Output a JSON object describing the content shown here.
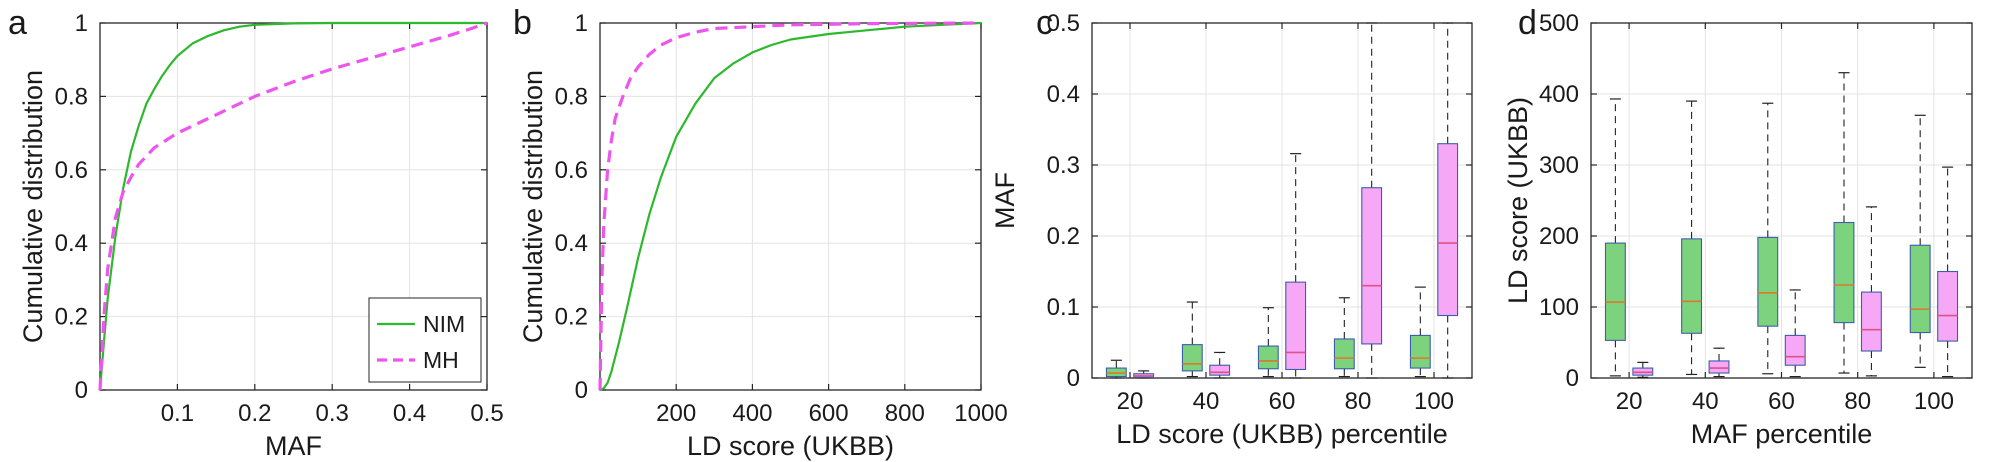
{
  "figure": {
    "panel_letters": [
      "a",
      "b",
      "c",
      "d"
    ]
  },
  "colors": {
    "nim": "#2db82d",
    "mh": "#ee55ee",
    "nim_fill": "#7dd27d",
    "mh_fill": "#f6a8f6",
    "median_nim": "#d97a2a",
    "median_mh": "#e0508a"
  },
  "chart_data": [
    {
      "panel": "a",
      "type": "line",
      "xlabel": "MAF",
      "ylabel": "Cumulative distribution",
      "xlim": [
        0,
        0.5
      ],
      "ylim": [
        0,
        1
      ],
      "xticks": [
        "0.1",
        "0.2",
        "0.3",
        "0.4",
        "0.5"
      ],
      "xtick_values": [
        0.1,
        0.2,
        0.3,
        0.4,
        0.5
      ],
      "yticks": [
        "0",
        "0.2",
        "0.4",
        "0.6",
        "0.8",
        "1"
      ],
      "ytick_values": [
        0,
        0.2,
        0.4,
        0.6,
        0.8,
        1
      ],
      "grid": true,
      "legend_position": "bottom-right",
      "series": [
        {
          "name": "NIM",
          "style": "solid",
          "color": "#2db82d",
          "x": [
            0,
            0.005,
            0.01,
            0.02,
            0.03,
            0.04,
            0.05,
            0.06,
            0.07,
            0.08,
            0.09,
            0.1,
            0.12,
            0.14,
            0.16,
            0.18,
            0.2,
            0.25,
            0.3,
            0.5
          ],
          "y": [
            0,
            0.13,
            0.25,
            0.42,
            0.55,
            0.65,
            0.72,
            0.78,
            0.82,
            0.855,
            0.885,
            0.91,
            0.945,
            0.965,
            0.98,
            0.99,
            0.995,
            0.999,
            1,
            1
          ]
        },
        {
          "name": "MH",
          "style": "dashed",
          "color": "#ee55ee",
          "x": [
            0,
            0.005,
            0.01,
            0.02,
            0.03,
            0.04,
            0.05,
            0.07,
            0.1,
            0.15,
            0.2,
            0.25,
            0.3,
            0.35,
            0.4,
            0.45,
            0.48,
            0.5
          ],
          "y": [
            0,
            0.2,
            0.33,
            0.47,
            0.54,
            0.58,
            0.615,
            0.66,
            0.7,
            0.75,
            0.8,
            0.84,
            0.875,
            0.905,
            0.935,
            0.965,
            0.985,
            1
          ]
        }
      ]
    },
    {
      "panel": "b",
      "type": "line",
      "xlabel": "LD score (UKBB)",
      "ylabel": "Cumulative distribution",
      "xlim": [
        0,
        1000
      ],
      "ylim": [
        0,
        1
      ],
      "xticks": [
        "200",
        "400",
        "600",
        "800",
        "1000"
      ],
      "xtick_values": [
        200,
        400,
        600,
        800,
        1000
      ],
      "yticks": [
        "0",
        "0.2",
        "0.4",
        "0.6",
        "0.8",
        "1"
      ],
      "ytick_values": [
        0,
        0.2,
        0.4,
        0.6,
        0.8,
        1
      ],
      "grid": true,
      "series": [
        {
          "name": "NIM",
          "style": "solid",
          "color": "#2db82d",
          "x": [
            0,
            10,
            20,
            30,
            50,
            70,
            100,
            130,
            160,
            200,
            250,
            300,
            350,
            400,
            450,
            500,
            600,
            700,
            800,
            900,
            1000
          ],
          "y": [
            0,
            0.005,
            0.02,
            0.05,
            0.13,
            0.22,
            0.36,
            0.48,
            0.58,
            0.69,
            0.78,
            0.85,
            0.89,
            0.92,
            0.94,
            0.955,
            0.97,
            0.98,
            0.99,
            0.995,
            1
          ]
        },
        {
          "name": "MH",
          "style": "dashed",
          "color": "#ee55ee",
          "x": [
            0,
            5,
            10,
            20,
            30,
            40,
            60,
            80,
            100,
            130,
            160,
            200,
            250,
            300,
            400,
            500,
            700,
            1000
          ],
          "y": [
            0,
            0.3,
            0.45,
            0.6,
            0.68,
            0.74,
            0.8,
            0.85,
            0.88,
            0.915,
            0.94,
            0.96,
            0.975,
            0.985,
            0.99,
            0.995,
            0.998,
            1
          ]
        }
      ]
    },
    {
      "panel": "c",
      "type": "box",
      "xlabel": "LD score (UKBB) percentile",
      "ylabel": "MAF",
      "categories": [
        "20",
        "40",
        "60",
        "80",
        "100"
      ],
      "ylim": [
        0,
        0.5
      ],
      "yticks": [
        "0",
        "0.1",
        "0.2",
        "0.3",
        "0.4",
        "0.5"
      ],
      "ytick_values": [
        0,
        0.1,
        0.2,
        0.3,
        0.4,
        0.5
      ],
      "grid": true,
      "series": [
        {
          "name": "NIM",
          "color": "#2db82d",
          "boxes": [
            {
              "min": 0.0,
              "q1": 0.002,
              "median": 0.007,
              "q3": 0.014,
              "max": 0.025
            },
            {
              "min": 0.002,
              "q1": 0.01,
              "median": 0.02,
              "q3": 0.047,
              "max": 0.107
            },
            {
              "min": 0.002,
              "q1": 0.013,
              "median": 0.024,
              "q3": 0.045,
              "max": 0.099
            },
            {
              "min": 0.002,
              "q1": 0.013,
              "median": 0.028,
              "q3": 0.055,
              "max": 0.113
            },
            {
              "min": 0.002,
              "q1": 0.014,
              "median": 0.028,
              "q3": 0.06,
              "max": 0.128
            }
          ]
        },
        {
          "name": "MH",
          "color": "#ee55ee",
          "boxes": [
            {
              "min": 0.0,
              "q1": 0.001,
              "median": 0.003,
              "q3": 0.006,
              "max": 0.01
            },
            {
              "min": 0.0,
              "q1": 0.004,
              "median": 0.008,
              "q3": 0.018,
              "max": 0.036
            },
            {
              "min": 0.0,
              "q1": 0.012,
              "median": 0.036,
              "q3": 0.135,
              "max": 0.316
            },
            {
              "min": 0.0,
              "q1": 0.048,
              "median": 0.13,
              "q3": 0.268,
              "max": 0.5
            },
            {
              "min": 0.0,
              "q1": 0.088,
              "median": 0.19,
              "q3": 0.33,
              "max": 0.5
            }
          ]
        }
      ]
    },
    {
      "panel": "d",
      "type": "box",
      "xlabel": "MAF percentile",
      "ylabel": "LD score (UKBB)",
      "categories": [
        "20",
        "40",
        "60",
        "80",
        "100"
      ],
      "ylim": [
        0,
        500
      ],
      "yticks": [
        "0",
        "100",
        "200",
        "300",
        "400",
        "500"
      ],
      "ytick_values": [
        0,
        100,
        200,
        300,
        400,
        500
      ],
      "grid": true,
      "series": [
        {
          "name": "NIM",
          "color": "#2db82d",
          "boxes": [
            {
              "min": 3,
              "q1": 53,
              "median": 107,
              "q3": 190,
              "max": 393
            },
            {
              "min": 5,
              "q1": 63,
              "median": 108,
              "q3": 196,
              "max": 390
            },
            {
              "min": 6,
              "q1": 73,
              "median": 120,
              "q3": 198,
              "max": 387
            },
            {
              "min": 7,
              "q1": 78,
              "median": 131,
              "q3": 219,
              "max": 430
            },
            {
              "min": 15,
              "q1": 64,
              "median": 97,
              "q3": 187,
              "max": 370
            }
          ]
        },
        {
          "name": "MH",
          "color": "#ee55ee",
          "boxes": [
            {
              "min": 1,
              "q1": 4,
              "median": 8,
              "q3": 14,
              "max": 22
            },
            {
              "min": 2,
              "q1": 7,
              "median": 14,
              "q3": 24,
              "max": 42
            },
            {
              "min": 2,
              "q1": 18,
              "median": 30,
              "q3": 60,
              "max": 124
            },
            {
              "min": 3,
              "q1": 38,
              "median": 68,
              "q3": 121,
              "max": 241
            },
            {
              "min": 2,
              "q1": 52,
              "median": 88,
              "q3": 150,
              "max": 297
            }
          ]
        }
      ]
    }
  ]
}
